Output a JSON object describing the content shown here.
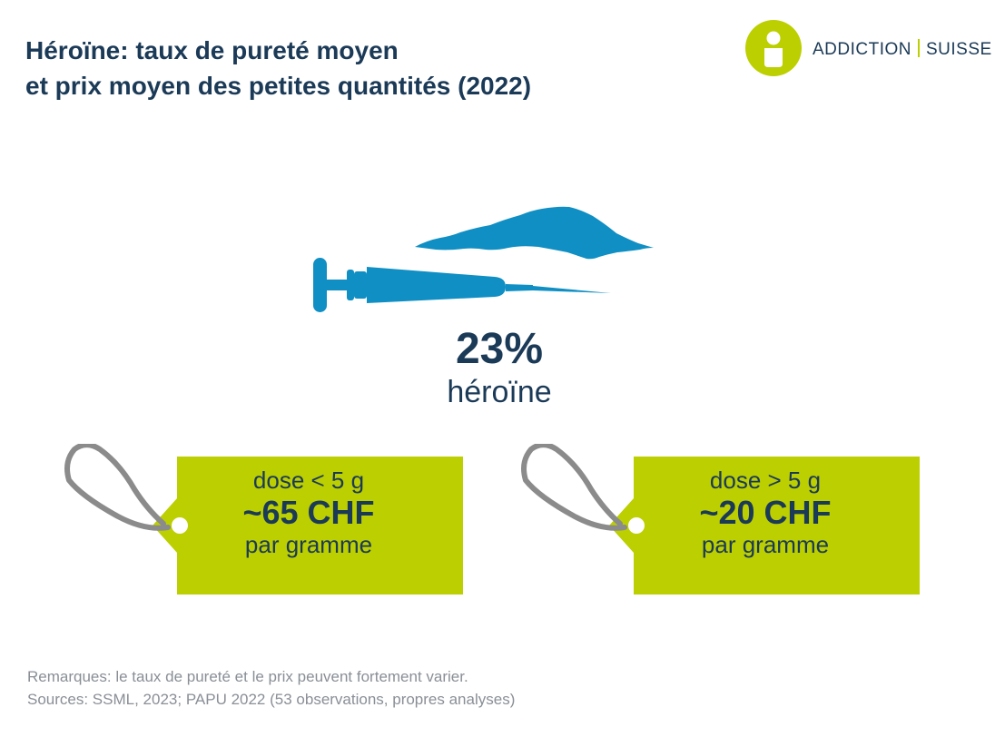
{
  "title": {
    "line1": "Héroïne: taux de pureté moyen",
    "line2": "et prix moyen des petites quantités (2022)"
  },
  "logo": {
    "part1": "ADDICTION",
    "part2": "SUISSE",
    "icon": "person-icon",
    "color": "#bccf00"
  },
  "purity": {
    "value": "23%",
    "label": "héroïne",
    "value_number": 23
  },
  "tags": [
    {
      "dose": "dose < 5 g",
      "price": "~65 CHF",
      "unit": "par gramme"
    },
    {
      "dose": "dose > 5 g",
      "price": "~20 CHF",
      "unit": "par gramme"
    }
  ],
  "footer": {
    "remarks": "Remarques: le taux de pureté et le prix peuvent fortement varier.",
    "sources": "Sources: SSML, 2023; PAPU 2022 (53 observations, propres analyses)"
  },
  "colors": {
    "title": "#1b3a57",
    "accent_green": "#bccf00",
    "illustration_blue": "#0f8fc4",
    "string_gray": "#8b8b8b",
    "footer_gray": "#8a8f96"
  }
}
